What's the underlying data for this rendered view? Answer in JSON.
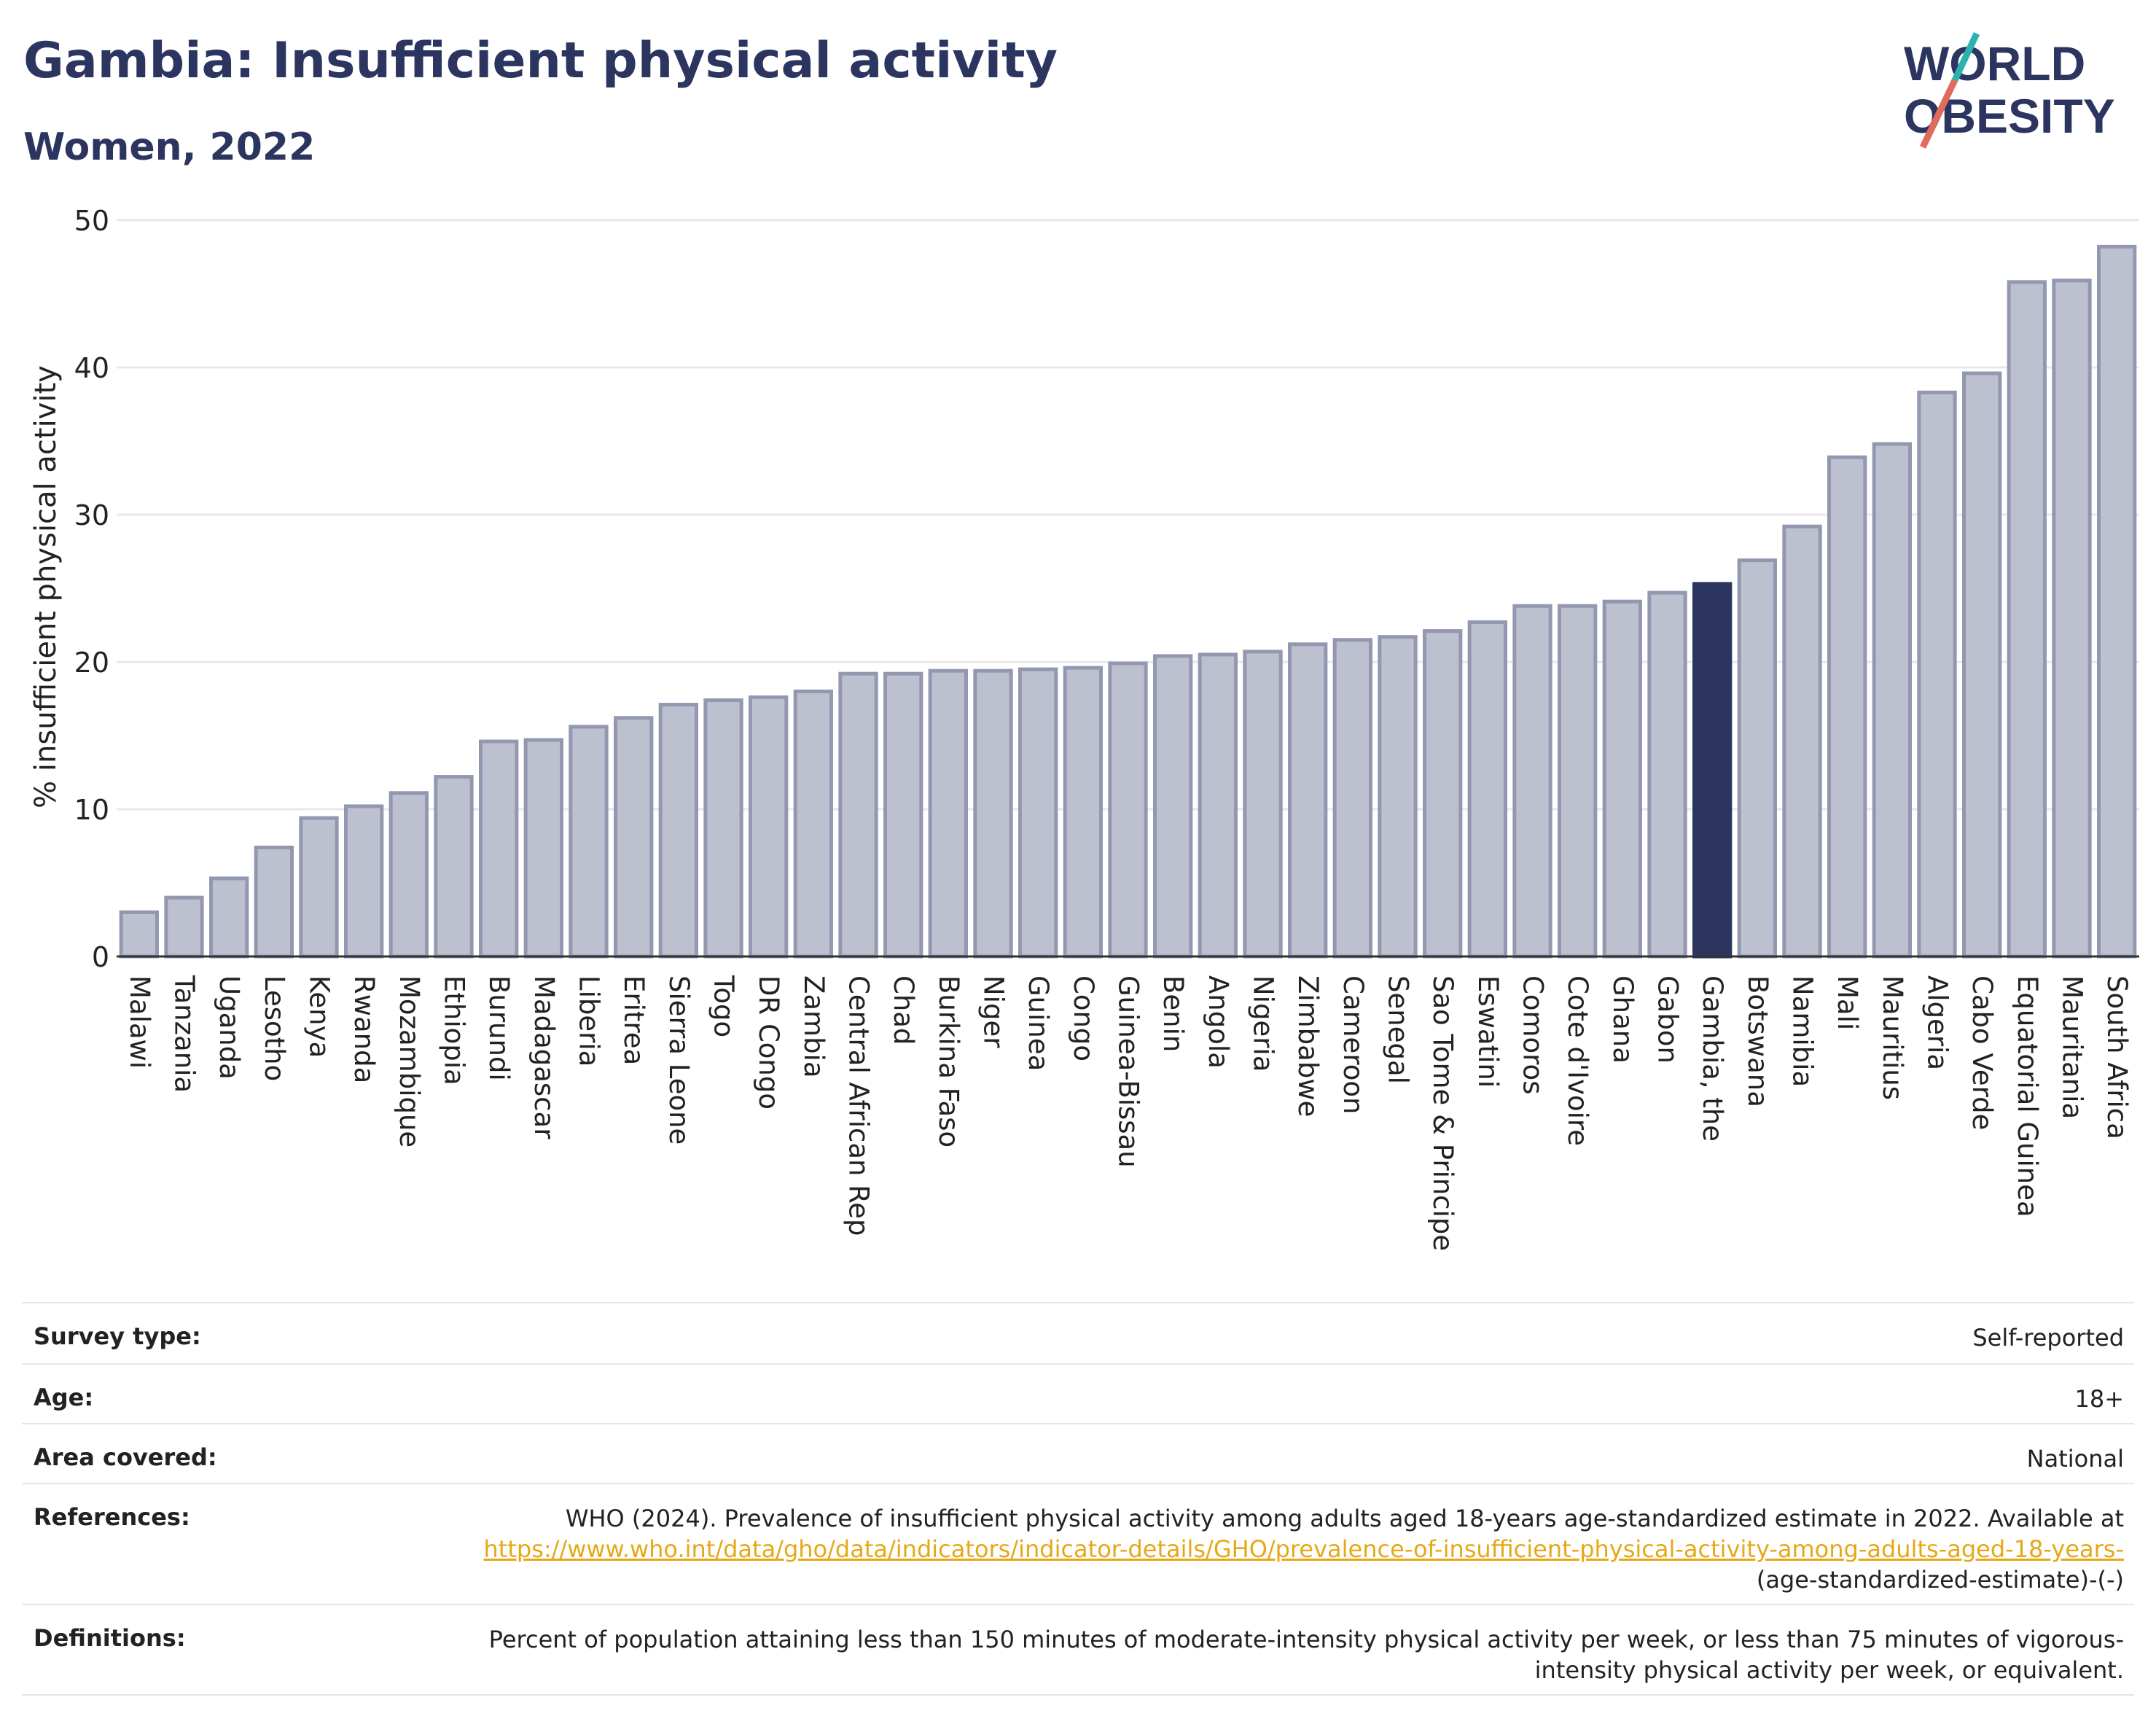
{
  "header": {
    "title": "Gambia: Insufficient physical activity",
    "subtitle": "Women, 2022"
  },
  "logo": {
    "line1": "WORLD",
    "line2": "OBESITY"
  },
  "chart_data": {
    "type": "bar",
    "ylabel": "% insufficient physical activity",
    "xlabel": "",
    "ylim": [
      0,
      50
    ],
    "yticks": [
      0,
      10,
      20,
      30,
      40,
      50
    ],
    "grid": true,
    "highlight": "Gambia, the",
    "colors": {
      "bar": "#bcc0cf",
      "bar_border": "#9398b0",
      "highlight": "#2b3560",
      "grid": "#e8e8ec"
    },
    "categories": [
      "Malawi",
      "Tanzania",
      "Uganda",
      "Lesotho",
      "Kenya",
      "Rwanda",
      "Mozambique",
      "Ethiopia",
      "Burundi",
      "Madagascar",
      "Liberia",
      "Eritrea",
      "Sierra Leone",
      "Togo",
      "DR Congo",
      "Zambia",
      "Central African Rep",
      "Chad",
      "Burkina Faso",
      "Niger",
      "Guinea",
      "Congo",
      "Guinea-Bissau",
      "Benin",
      "Angola",
      "Nigeria",
      "Zimbabwe",
      "Cameroon",
      "Senegal",
      "Sao Tome & Principe",
      "Eswatini",
      "Comoros",
      "Cote d'Ivoire",
      "Ghana",
      "Gabon",
      "Gambia, the",
      "Botswana",
      "Namibia",
      "Mali",
      "Mauritius",
      "Algeria",
      "Cabo Verde",
      "Equatorial Guinea",
      "Mauritania",
      "South Africa"
    ],
    "values": [
      3.0,
      4.0,
      5.3,
      7.4,
      9.4,
      10.2,
      11.1,
      12.2,
      14.6,
      14.7,
      15.6,
      16.2,
      17.1,
      17.4,
      17.6,
      18.0,
      19.2,
      19.2,
      19.4,
      19.4,
      19.5,
      19.6,
      19.9,
      20.4,
      20.5,
      20.7,
      21.2,
      21.5,
      21.7,
      22.1,
      22.7,
      23.8,
      23.8,
      24.1,
      24.7,
      25.3,
      26.9,
      29.2,
      33.9,
      34.8,
      38.3,
      39.6,
      45.8,
      45.9,
      48.2
    ]
  },
  "meta": [
    {
      "label": "Survey type:",
      "value": "Self-reported"
    },
    {
      "label": "Age:",
      "value": "18+"
    },
    {
      "label": "Area covered:",
      "value": "National"
    },
    {
      "label": "References:",
      "value_prefix": "WHO (2024). Prevalence of insufficient physical activity among adults aged 18-years age-standardized estimate in 2022. Available at",
      "link": "https://www.who.int/data/gho/data/indicators/indicator-details/GHO/prevalence-of-insufficient-physical-activity-among-adults-aged-18-years-",
      "value_suffix": "(age-standardized-estimate)-(-)"
    },
    {
      "label": "Definitions:",
      "value": "Percent of population attaining less than 150 minutes of moderate-intensity physical activity per week, or less than 75 minutes of vigorous-intensity physical activity per week, or equivalent."
    }
  ]
}
